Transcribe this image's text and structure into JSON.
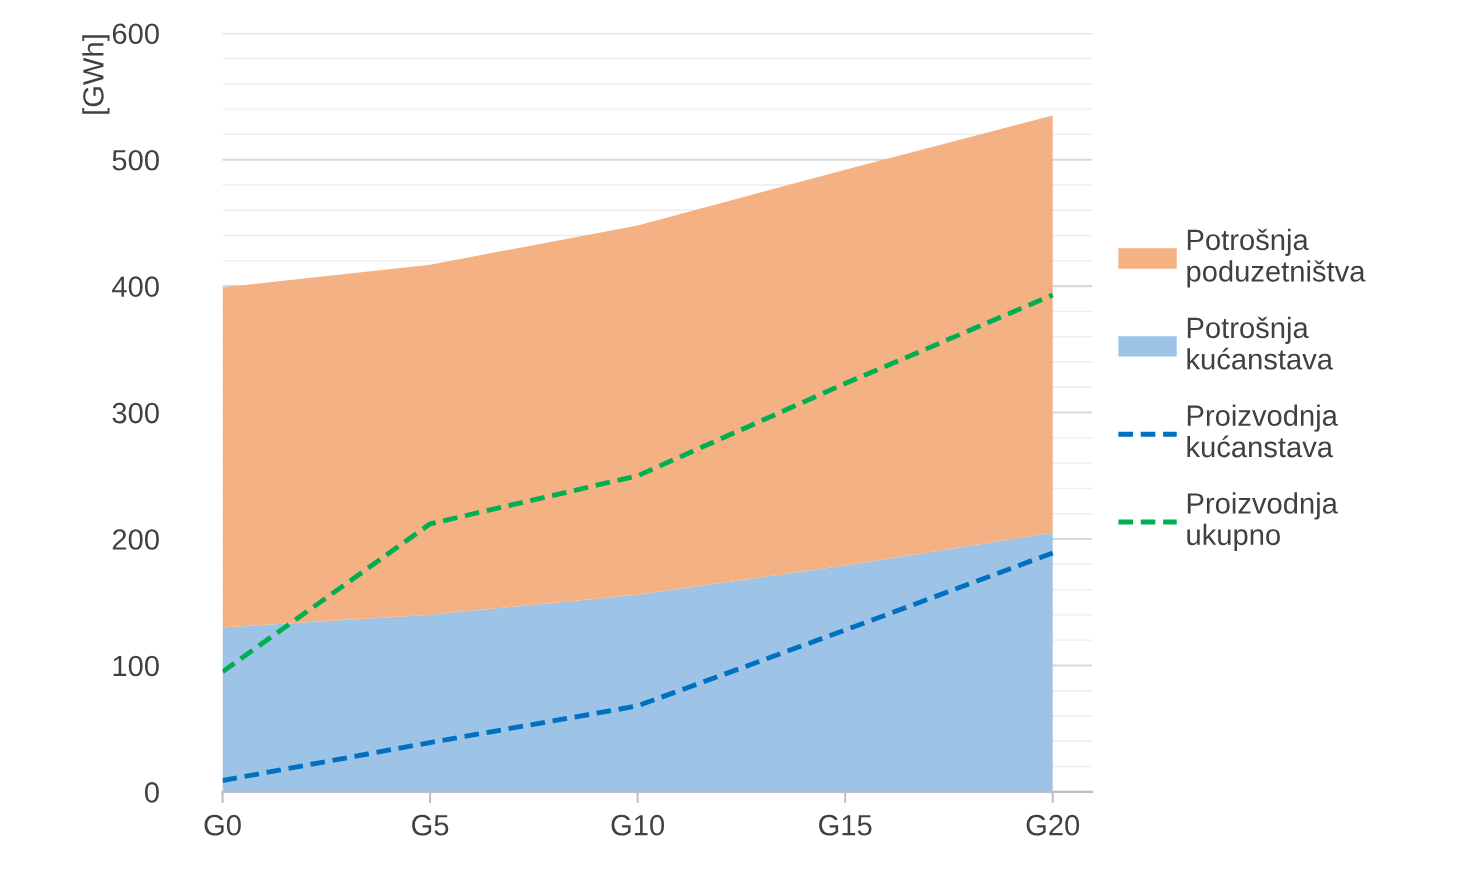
{
  "chart_data": {
    "type": "area",
    "stacked": true,
    "ylabel": "[GWh]",
    "categories": [
      "G0",
      "G5",
      "G10",
      "G15",
      "G20"
    ],
    "series": [
      {
        "name": "Potrošnja kućanstava",
        "color": "#9dc3e6",
        "values": [
          130,
          140,
          156,
          179,
          205
        ]
      },
      {
        "name": "Potrošnja poduzetništva",
        "color": "#f4b183",
        "values": [
          269,
          277,
          292,
          313,
          330
        ]
      },
      {
        "name": "Proizvodnja kućanstava",
        "type": "line",
        "line_style": "dashed",
        "color": "#0070c0",
        "values": [
          9,
          39,
          68,
          128,
          189
        ]
      },
      {
        "name": "Proizvodnja ukupno",
        "type": "line",
        "line_style": "dashed",
        "color": "#00b050",
        "values": [
          95,
          212,
          250,
          323,
          393
        ]
      }
    ],
    "ylim": [
      0,
      600
    ],
    "yticks": [
      0,
      {
        "value": 20,
        "label": null
      },
      {
        "value": 40,
        "label": null
      },
      {
        "value": 60,
        "label": null
      },
      {
        "value": 80,
        "label": null
      },
      100,
      {
        "value": 120,
        "label": null
      },
      {
        "value": 140,
        "label": null
      },
      {
        "value": 160,
        "label": null
      },
      {
        "value": 180,
        "label": null
      },
      200,
      {
        "value": 220,
        "label": null
      },
      {
        "value": 240,
        "label": null
      },
      {
        "value": 260,
        "label": null
      },
      {
        "value": 280,
        "label": null
      },
      300,
      {
        "value": 320,
        "label": null
      },
      {
        "value": 340,
        "label": null
      },
      {
        "value": 360,
        "label": null
      },
      {
        "value": 380,
        "label": null
      },
      400,
      {
        "value": 420,
        "label": null
      },
      {
        "value": 440,
        "label": null
      },
      {
        "value": 460,
        "label": null
      },
      {
        "value": 480,
        "label": null
      },
      500,
      {
        "value": 520,
        "label": null
      },
      {
        "value": 540,
        "label": null
      },
      {
        "value": 560,
        "label": null
      },
      {
        "value": 580,
        "label": null
      },
      600
    ],
    "grid": "y",
    "legend": "right"
  }
}
